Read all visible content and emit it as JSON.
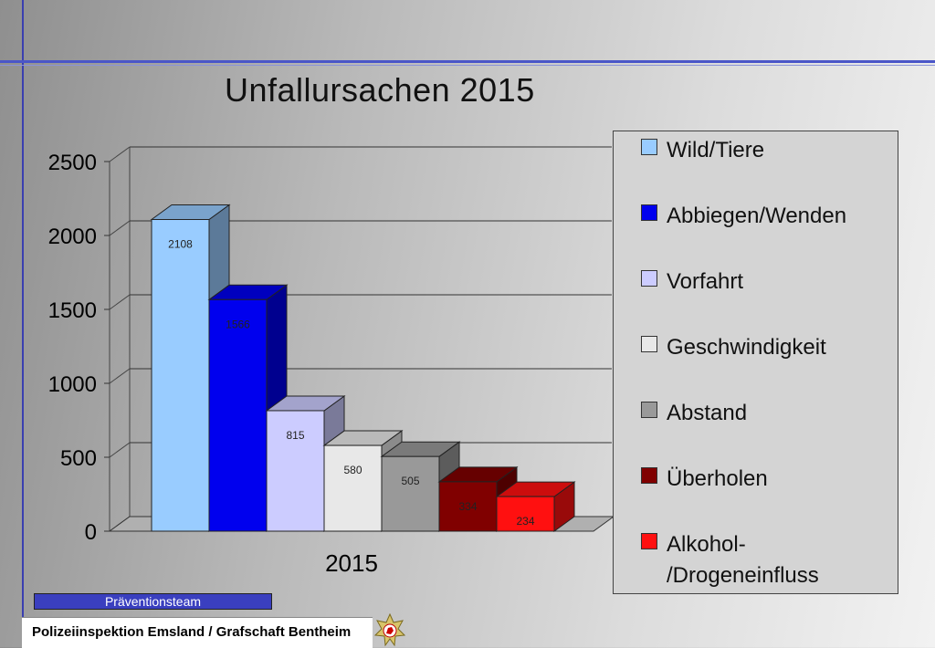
{
  "title": "Unfallursachen 2015",
  "footer": {
    "team_label": "Präventionsteam",
    "org_label": "Polizeiinspektion Emsland / Grafschaft Bentheim"
  },
  "colors": {
    "accent_line": "#3a3fb0",
    "team_bar": "#3a3fbf"
  },
  "chart_data": {
    "type": "bar",
    "title": "Unfallursachen 2015",
    "categories": [
      "2015"
    ],
    "ylim": [
      0,
      2500
    ],
    "yticks": [
      0,
      500,
      1000,
      1500,
      2000,
      2500
    ],
    "grid": true,
    "legend_position": "right",
    "series": [
      {
        "name": "Wild/Tiere",
        "values": [
          2108
        ],
        "color": "#99ccff"
      },
      {
        "name": "Abbiegen/Wenden",
        "values": [
          1566
        ],
        "color": "#0000ee"
      },
      {
        "name": "Vorfahrt",
        "values": [
          815
        ],
        "color": "#ccccff"
      },
      {
        "name": "Geschwindigkeit",
        "values": [
          580
        ],
        "color": "#e8e8e8"
      },
      {
        "name": "Abstand",
        "values": [
          505
        ],
        "color": "#999999"
      },
      {
        "name": "Überholen",
        "values": [
          334
        ],
        "color": "#800000"
      },
      {
        "name": "Alkohol-\n/Drogeneinfluss",
        "values": [
          234
        ],
        "color": "#ff1010"
      }
    ]
  }
}
